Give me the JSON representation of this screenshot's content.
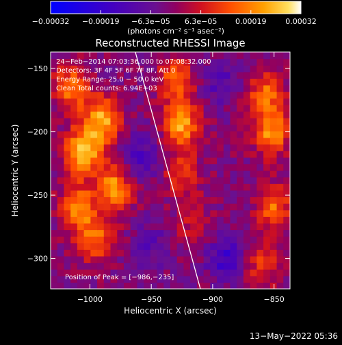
{
  "chart_data": {
    "type": "heatmap",
    "title": "Reconstructed RHESSI Image",
    "xlabel": "Heliocentric X (arcsec)",
    "ylabel": "Heliocentric Y (arcsec)",
    "xlim": [
      -1032,
      -837
    ],
    "ylim": [
      -324,
      -137
    ],
    "x_ticks": [
      -1000,
      -950,
      -900,
      -850
    ],
    "x_tick_labels": [
      "−1000",
      "−950",
      "−900",
      "−850"
    ],
    "y_ticks": [
      -300,
      -250,
      -200,
      -150
    ],
    "y_tick_labels": [
      "−300",
      "−250",
      "−200",
      "−150"
    ],
    "colorbar": {
      "min": -0.00032,
      "max": 0.00032,
      "tick_labels": [
        "−0.00032",
        "−0.00019",
        "−6.3e−05",
        "6.3e−05",
        "0.00019",
        "0.00032"
      ],
      "unit_label": "(photons cm⁻² s⁻¹ asec⁻²)"
    },
    "annotations": [
      "24−Feb−2014 07:03:36.000 to 07:08:32.000",
      "Detectors: 3F 4F 5F 6F 7F 8F, Att 0",
      "Energy Range: 25.0 − 50.0 keV",
      "Clean    Total counts: 6.94E+03"
    ],
    "peak_label": "Position of Peak = [−986,−235]",
    "peak_position": [
      -986,
      -235
    ],
    "limb_line": [
      [
        -963,
        -137
      ],
      [
        -910,
        -324
      ]
    ],
    "intensity_regions": [
      {
        "x": -1005,
        "y": -215,
        "value": 0.0003
      },
      {
        "x": -990,
        "y": -190,
        "value": 0.00026
      },
      {
        "x": -1015,
        "y": -165,
        "value": 0.0002
      },
      {
        "x": -1010,
        "y": -260,
        "value": 0.00022
      },
      {
        "x": -995,
        "y": -285,
        "value": 0.00018
      },
      {
        "x": -980,
        "y": -245,
        "value": 0.00024
      },
      {
        "x": -925,
        "y": -195,
        "value": 0.00024
      },
      {
        "x": -930,
        "y": -160,
        "value": 0.00018
      },
      {
        "x": -925,
        "y": -235,
        "value": 0.00012
      },
      {
        "x": -915,
        "y": -275,
        "value": 8e-05
      },
      {
        "x": -852,
        "y": -200,
        "value": 0.00022
      },
      {
        "x": -857,
        "y": -170,
        "value": 0.00018
      },
      {
        "x": -850,
        "y": -260,
        "value": 0.00018
      },
      {
        "x": -860,
        "y": -305,
        "value": 0.00012
      },
      {
        "x": -960,
        "y": -220,
        "value": -0.00012
      },
      {
        "x": -890,
        "y": -300,
        "value": -0.00015
      },
      {
        "x": -895,
        "y": -160,
        "value": -0.0001
      },
      {
        "x": -950,
        "y": -290,
        "value": -8e-05
      }
    ]
  },
  "footer": {
    "timestamp": "13−May−2022 05:36"
  }
}
